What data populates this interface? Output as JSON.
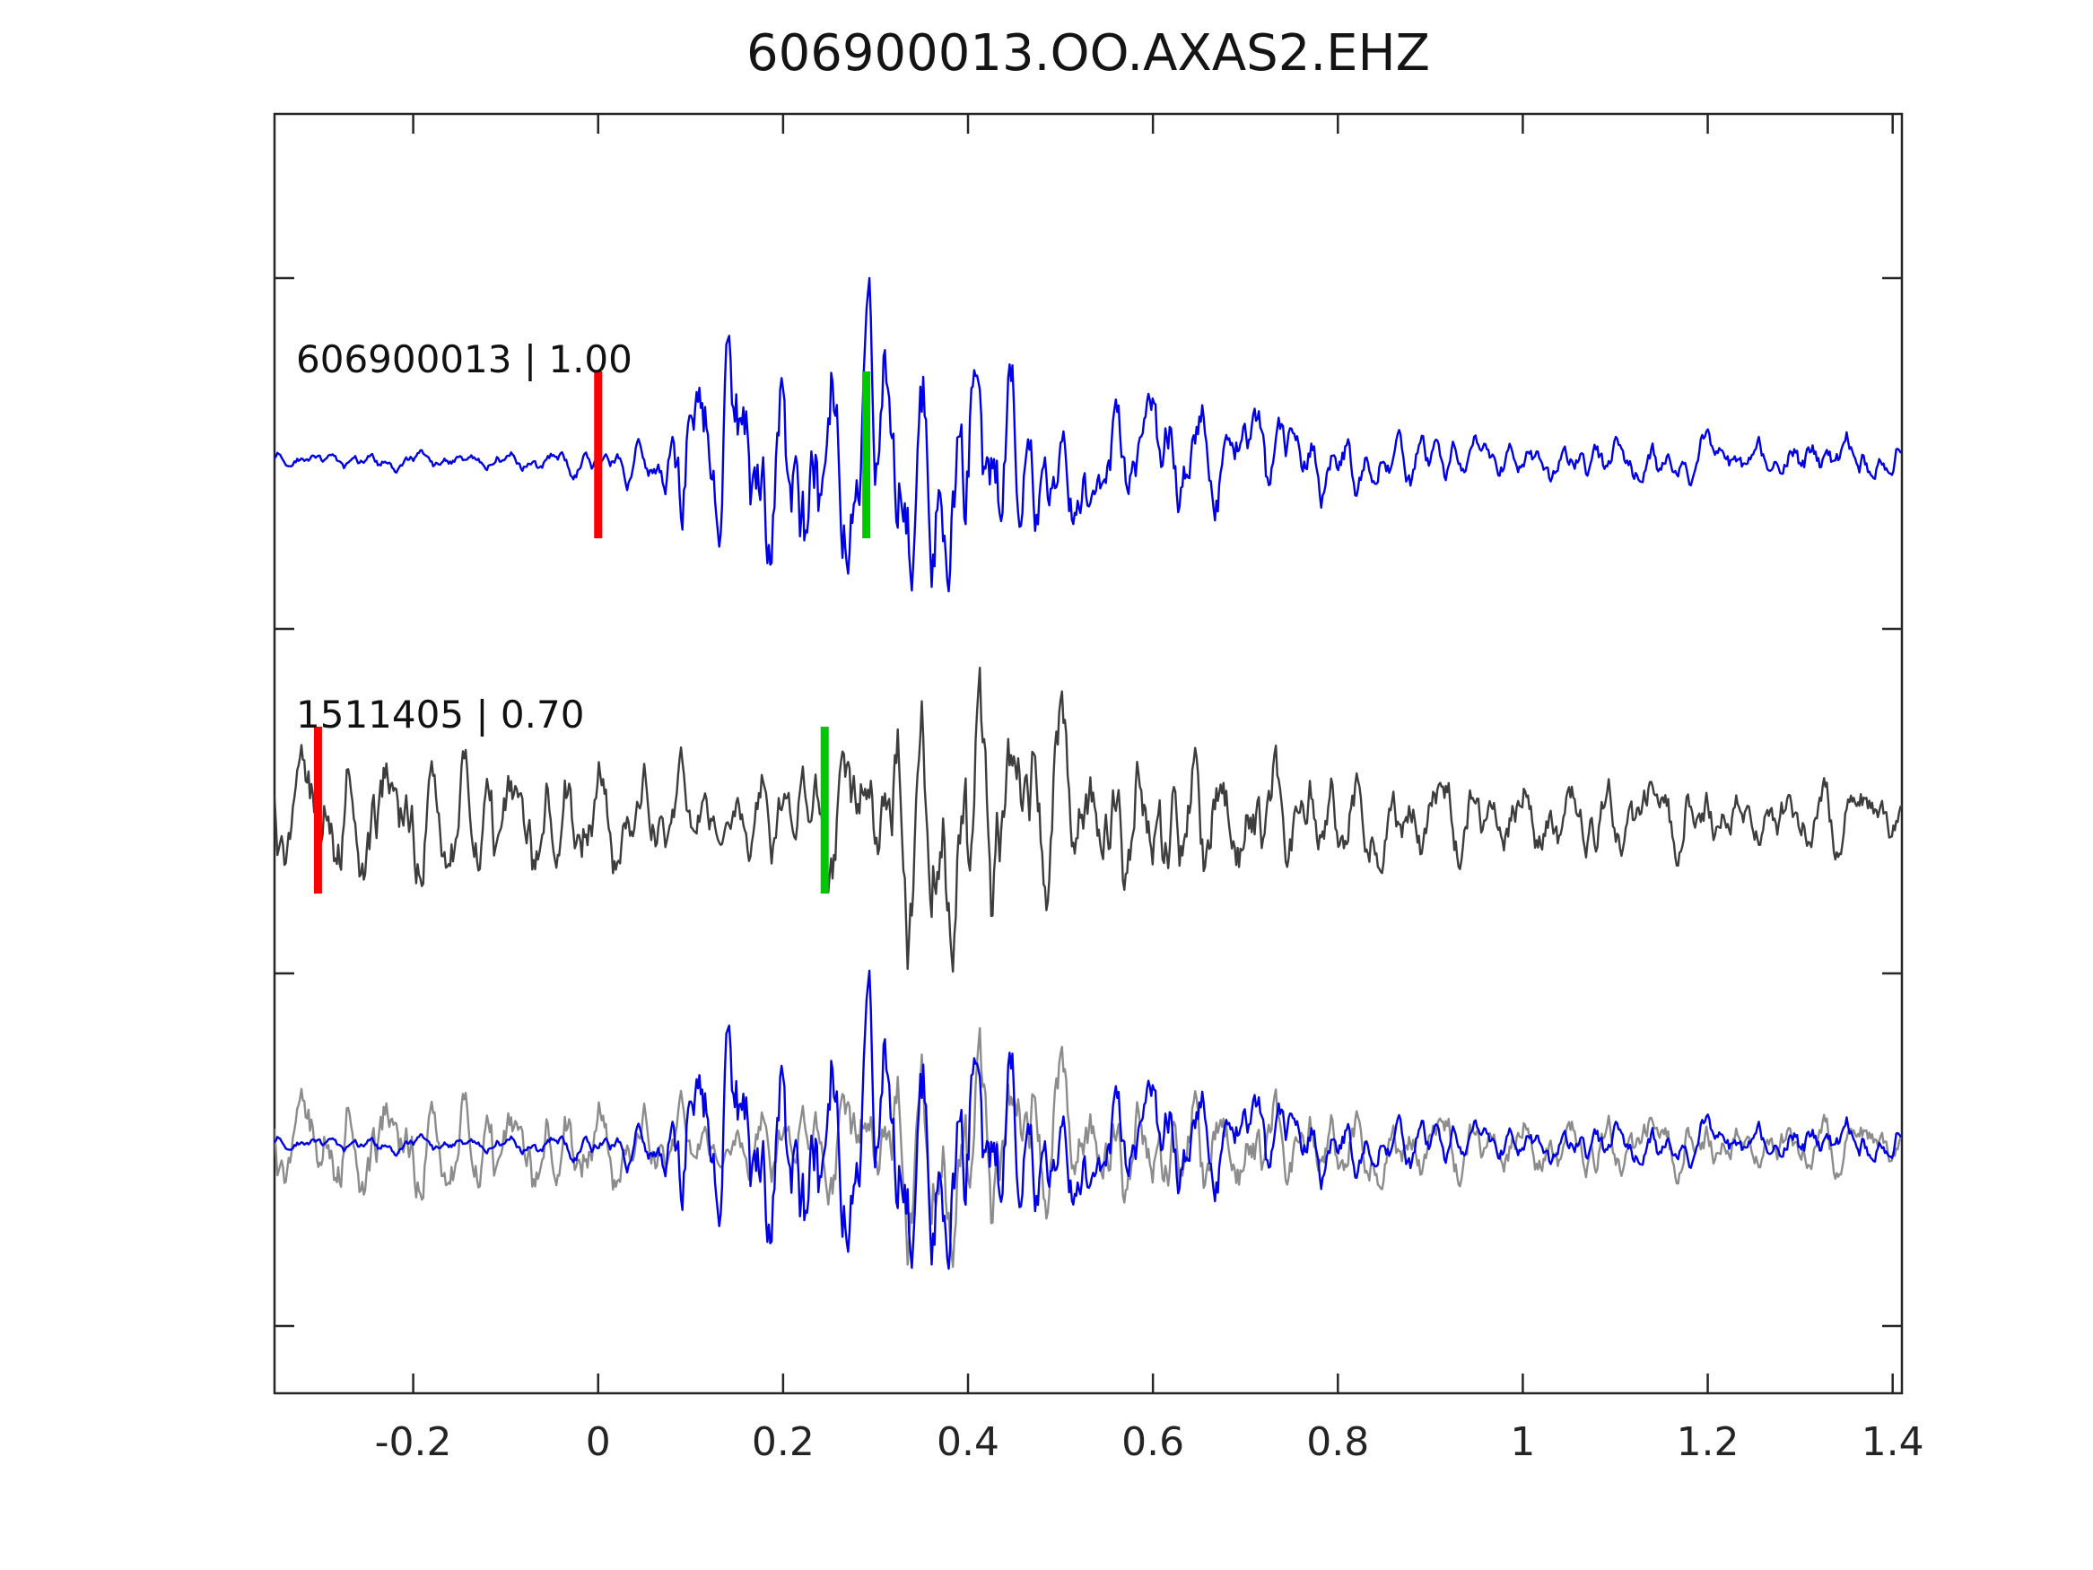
{
  "title": "606900013.OO.AXAS2.EHZ",
  "chart_data": {
    "type": "line",
    "title": "606900013.OO.AXAS2.EHZ",
    "xlabel": "",
    "ylabel": "",
    "xlim": [
      -0.35,
      1.41
    ],
    "grid": false,
    "legend": "none",
    "x_ticks": {
      "values": [
        -0.2,
        0,
        0.2,
        0.4,
        0.6,
        0.8,
        1,
        1.2,
        1.4
      ],
      "labels": [
        "-0.2",
        "0",
        "0.2",
        "0.4",
        "0.6",
        "0.8",
        "1",
        "1.2",
        "1.4"
      ]
    },
    "rows": [
      {
        "id": "detection",
        "label": "606900013 | 1.00",
        "picks": [
          {
            "name": "pick-marker-red",
            "time": 0.0,
            "color": "#ff0000"
          },
          {
            "name": "pick-marker-green",
            "time": 0.29,
            "color": "#00c800"
          }
        ],
        "series": [
          {
            "ref": "detection",
            "amp": 205
          }
        ]
      },
      {
        "id": "template",
        "label": "1511405 | 0.70",
        "picks": [
          {
            "name": "pick-marker-red",
            "time": -0.303,
            "color": "#ff0000"
          },
          {
            "name": "pick-marker-green",
            "time": 0.245,
            "color": "#00c800"
          }
        ],
        "series": [
          {
            "ref": "template",
            "amp": 172
          }
        ]
      },
      {
        "id": "overlay",
        "label": "",
        "picks": [],
        "series": [
          {
            "ref": "template",
            "amp": 135,
            "color": "#8c8c8c"
          },
          {
            "ref": "detection",
            "amp": 195
          }
        ]
      }
    ],
    "series_defs": {
      "detection": {
        "color": "#0000e6",
        "seed": 20817,
        "freqs": [
          52,
          33,
          20
        ],
        "envelope": [
          [
            -0.35,
            0.06
          ],
          [
            -0.2,
            0.07
          ],
          [
            -0.05,
            0.09
          ],
          [
            0.02,
            0.1
          ],
          [
            0.06,
            0.22
          ],
          [
            0.1,
            0.65
          ],
          [
            0.13,
            1.0
          ],
          [
            0.17,
            0.8
          ],
          [
            0.21,
            0.95
          ],
          [
            0.27,
            0.75
          ],
          [
            0.31,
            0.9
          ],
          [
            0.37,
            0.85
          ],
          [
            0.43,
            0.8
          ],
          [
            0.47,
            0.6
          ],
          [
            0.52,
            0.45
          ],
          [
            0.58,
            0.38
          ],
          [
            0.63,
            0.45
          ],
          [
            0.68,
            0.35
          ],
          [
            0.75,
            0.3
          ],
          [
            0.83,
            0.22
          ],
          [
            0.95,
            0.18
          ],
          [
            1.05,
            0.16
          ],
          [
            1.15,
            0.2
          ],
          [
            1.25,
            0.16
          ],
          [
            1.33,
            0.2
          ],
          [
            1.41,
            0.15
          ]
        ]
      },
      "template": {
        "color": "#3d3d3d",
        "seed": 9041,
        "freqs": [
          34,
          47,
          22
        ],
        "envelope": [
          [
            -0.35,
            0.42
          ],
          [
            -0.25,
            0.48
          ],
          [
            -0.15,
            0.45
          ],
          [
            -0.05,
            0.42
          ],
          [
            0.05,
            0.35
          ],
          [
            0.12,
            0.3
          ],
          [
            0.18,
            0.32
          ],
          [
            0.24,
            0.45
          ],
          [
            0.3,
            0.6
          ],
          [
            0.36,
            0.85
          ],
          [
            0.4,
            1.0
          ],
          [
            0.44,
            0.9
          ],
          [
            0.48,
            0.75
          ],
          [
            0.53,
            0.55
          ],
          [
            0.58,
            0.5
          ],
          [
            0.64,
            0.55
          ],
          [
            0.7,
            0.45
          ],
          [
            0.78,
            0.4
          ],
          [
            0.85,
            0.32
          ],
          [
            0.95,
            0.3
          ],
          [
            1.05,
            0.28
          ],
          [
            1.15,
            0.3
          ],
          [
            1.25,
            0.24
          ],
          [
            1.33,
            0.26
          ],
          [
            1.41,
            0.22
          ]
        ]
      }
    }
  }
}
